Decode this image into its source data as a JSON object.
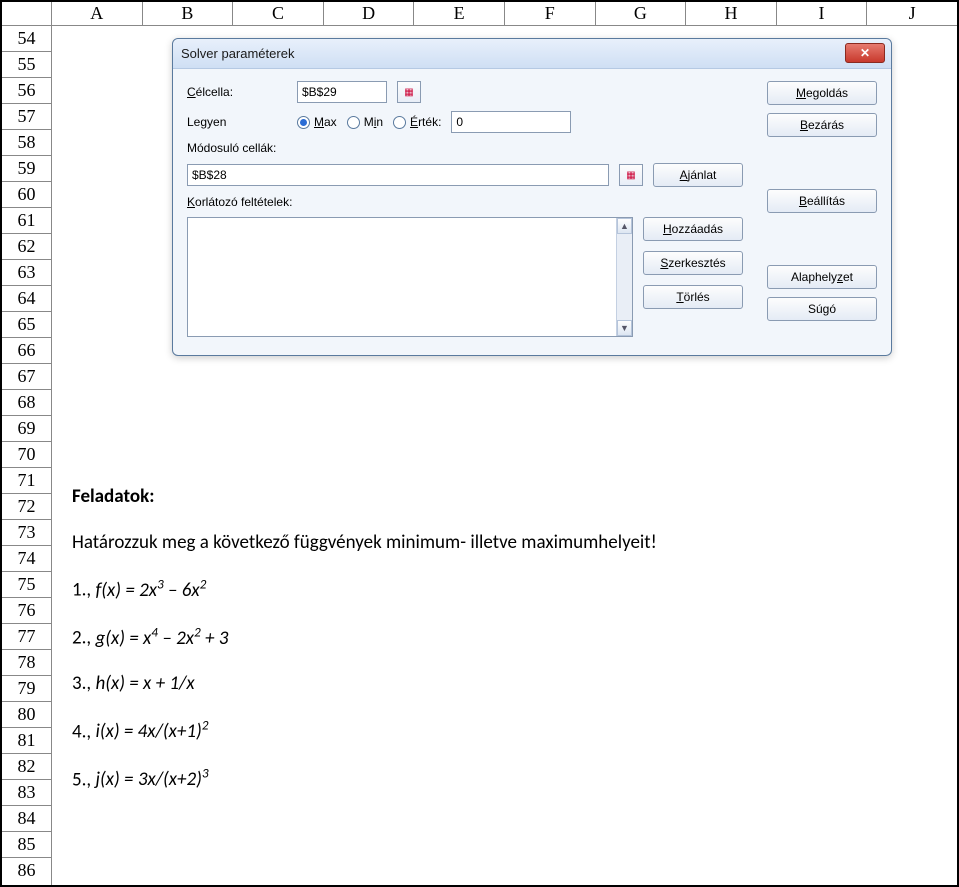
{
  "columns": [
    "A",
    "B",
    "C",
    "D",
    "E",
    "F",
    "G",
    "H",
    "I",
    "J"
  ],
  "rows_start": 54,
  "rows_end": 86,
  "dialog": {
    "title": "Solver paraméterek",
    "target_label": "Célcella:",
    "target_value": "$B$29",
    "optimize_label": "Legyen",
    "opt_max": "Max",
    "opt_min": "Min",
    "opt_value": "Érték:",
    "value_input": "0",
    "changing_label": "Módosuló cellák:",
    "changing_value": "$B$28",
    "suggest_btn": "Ajánlat",
    "constraints_label": "Korlátozó feltételek:",
    "add_btn": "Hozzáadás",
    "edit_btn": "Szerkesztés",
    "delete_btn": "Törlés",
    "solve_btn": "Megoldás",
    "close_btn_txt": "Bezárás",
    "options_btn": "Beállítás",
    "reset_btn": "Alaphelyzet",
    "help_btn": "Súgó"
  },
  "text": {
    "title": "Feladatok:",
    "intro": "Határozzuk meg a következő függvények minimum- illetve maximumhelyeit!",
    "f1_pre": "1., ",
    "f1_fn": "f(x) = 2x",
    "f1_sup1": "3",
    "f1_mid": " – 6x",
    "f1_sup2": "2",
    "f2_pre": "2., ",
    "f2_fn": "g(x) = x",
    "f2_sup1": "4",
    "f2_mid": " – 2x",
    "f2_sup2": "2",
    "f2_tail": " + 3",
    "f3_pre": "3., ",
    "f3_fn": "h(x) = x + 1/x",
    "f4_pre": "4., ",
    "f4_fn": "i(x) = 4x/(x+1)",
    "f4_sup": "2",
    "f5_pre": "5., ",
    "f5_fn": "j(x) = 3x/(x+2)",
    "f5_sup": "3"
  }
}
